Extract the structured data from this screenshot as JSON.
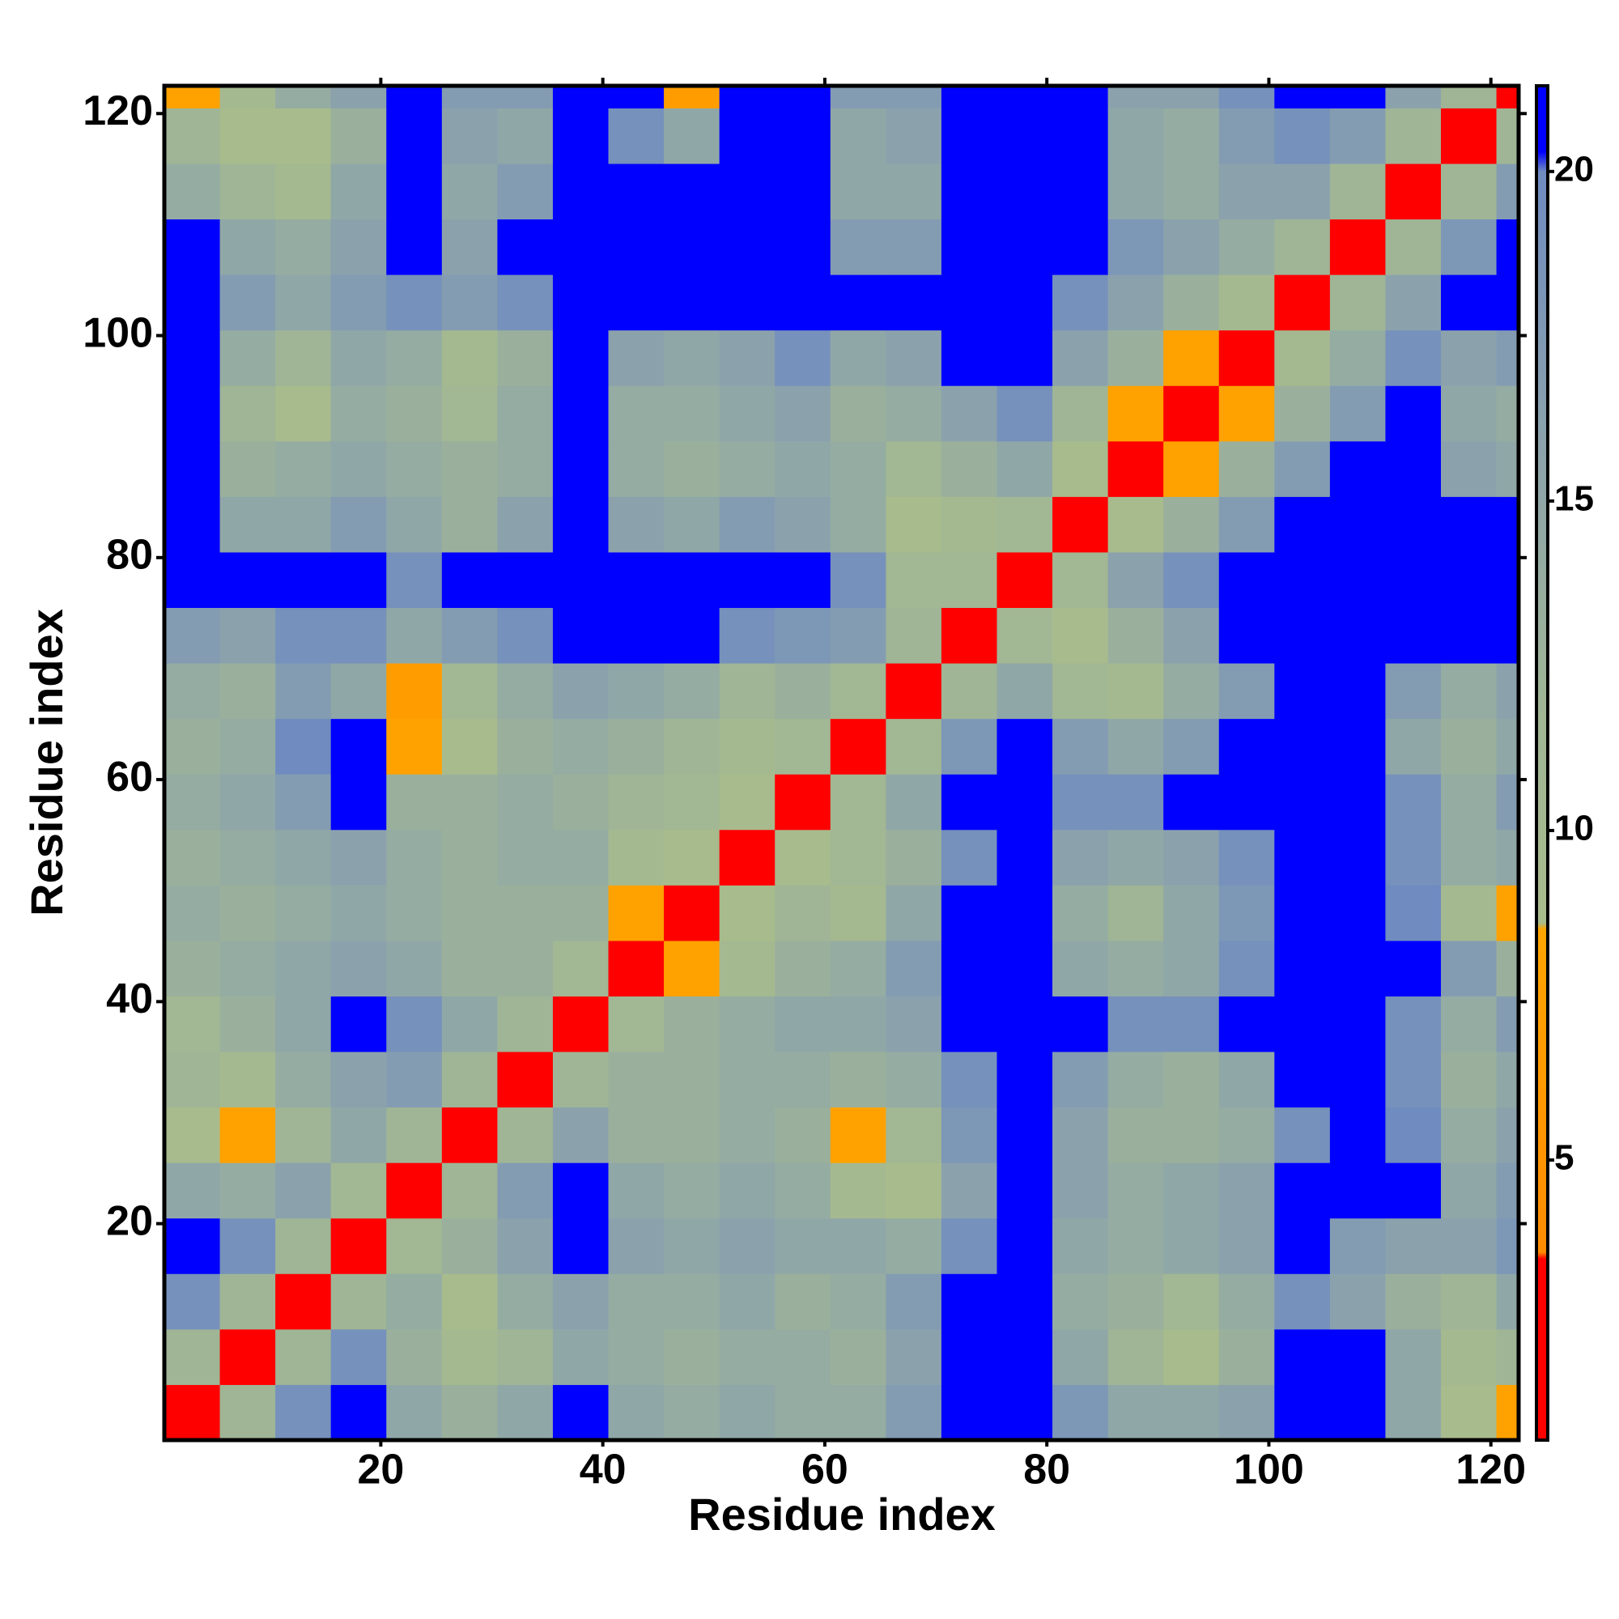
{
  "chart_data": {
    "type": "heatmap",
    "xlabel": "Residue index",
    "ylabel": "Residue index",
    "xbins": [
      0.5,
      5.5,
      10.5,
      15.5,
      20.5,
      25.5,
      30.5,
      35.5,
      40.5,
      45.5,
      50.5,
      55.5,
      60.5,
      65.5,
      70.5,
      75.5,
      80.5,
      85.5,
      90.5,
      95.5,
      100.5,
      105.5,
      110.5,
      115.5,
      120.5,
      122.5
    ],
    "ybins": [
      0.5,
      5.5,
      10.5,
      15.5,
      20.5,
      25.5,
      30.5,
      35.5,
      40.5,
      45.5,
      50.5,
      55.5,
      60.5,
      65.5,
      70.5,
      75.5,
      80.5,
      85.5,
      90.5,
      95.5,
      100.5,
      105.5,
      110.5,
      115.5,
      120.5,
      122.5
    ],
    "values": [
      [
        3,
        12,
        19,
        21,
        15,
        13,
        15,
        21,
        15,
        14,
        15,
        14,
        14,
        17,
        21,
        21,
        18,
        15,
        15,
        16,
        21,
        21,
        15,
        9,
        8
      ],
      [
        12,
        3,
        12,
        19,
        13,
        10,
        12,
        15,
        14,
        13,
        14,
        14,
        13,
        16,
        21,
        21,
        15,
        12,
        9,
        13,
        21,
        21,
        15,
        10,
        12
      ],
      [
        19,
        12,
        3,
        12,
        14,
        9,
        14,
        16,
        14,
        14,
        15,
        13,
        14,
        17,
        21,
        21,
        14,
        13,
        11,
        14,
        19,
        16,
        13,
        12,
        15
      ],
      [
        21,
        19,
        12,
        3,
        11,
        13,
        16,
        21,
        16,
        15,
        16,
        15,
        15,
        14,
        19,
        21,
        15,
        14,
        15,
        16,
        21,
        17,
        16,
        16,
        18
      ],
      [
        15,
        14,
        16,
        11,
        3,
        12,
        17,
        21,
        15,
        14,
        15,
        14,
        10,
        9,
        16,
        21,
        16,
        14,
        15,
        16,
        21,
        21,
        21,
        15,
        17
      ],
      [
        9,
        8,
        12,
        15,
        12,
        3,
        12,
        16,
        13,
        13,
        14,
        13,
        8,
        11,
        18,
        21,
        16,
        13,
        13,
        14,
        19,
        21,
        20,
        14,
        16
      ],
      [
        12,
        10,
        14,
        16,
        17,
        12,
        3,
        12,
        13,
        13,
        14,
        14,
        13,
        14,
        19,
        21,
        17,
        14,
        13,
        15,
        21,
        21,
        19,
        13,
        15
      ],
      [
        11,
        13,
        15,
        21,
        19,
        15,
        12,
        3,
        11,
        13,
        14,
        15,
        15,
        16,
        21,
        21,
        21,
        19,
        19,
        21,
        21,
        21,
        19,
        14,
        17
      ],
      [
        13,
        14,
        15,
        16,
        15,
        13,
        13,
        11,
        3,
        8,
        10,
        13,
        14,
        17,
        21,
        21,
        15,
        14,
        15,
        19,
        21,
        21,
        21,
        17,
        13
      ],
      [
        14,
        13,
        14,
        15,
        14,
        13,
        13,
        13,
        8,
        3,
        9,
        12,
        10,
        15,
        21,
        21,
        14,
        12,
        15,
        18,
        21,
        21,
        20,
        10,
        8
      ],
      [
        13,
        14,
        15,
        16,
        14,
        13,
        14,
        14,
        10,
        9,
        3,
        9,
        11,
        13,
        19,
        21,
        16,
        15,
        16,
        19,
        21,
        21,
        19,
        14,
        15
      ],
      [
        14,
        15,
        17,
        21,
        13,
        13,
        14,
        13,
        12,
        11,
        9,
        3,
        11,
        15,
        21,
        21,
        19,
        19,
        21,
        21,
        21,
        21,
        19,
        14,
        17
      ],
      [
        13,
        14,
        20,
        21,
        8,
        9,
        13,
        14,
        13,
        12,
        10,
        11,
        3,
        11,
        18,
        21,
        17,
        15,
        17,
        21,
        21,
        21,
        15,
        13,
        15
      ],
      [
        14,
        13,
        17,
        15,
        7,
        11,
        14,
        16,
        15,
        14,
        12,
        13,
        11,
        3,
        12,
        15,
        11,
        10,
        14,
        17,
        21,
        21,
        17,
        14,
        16
      ],
      [
        17,
        16,
        19,
        19,
        15,
        17,
        19,
        21,
        21,
        21,
        19,
        18,
        17,
        12,
        3,
        11,
        9,
        13,
        16,
        21,
        21,
        21,
        21,
        21,
        21
      ],
      [
        21,
        21,
        21,
        21,
        19,
        21,
        21,
        21,
        21,
        21,
        21,
        21,
        19,
        11,
        11,
        3,
        11,
        16,
        19,
        21,
        21,
        21,
        21,
        21,
        21
      ],
      [
        21,
        15,
        15,
        17,
        15,
        13,
        16,
        21,
        16,
        15,
        17,
        16,
        14,
        9,
        10,
        11,
        3,
        9,
        13,
        17,
        21,
        21,
        21,
        21,
        21
      ],
      [
        21,
        13,
        14,
        15,
        14,
        13,
        14,
        21,
        14,
        13,
        14,
        15,
        14,
        11,
        13,
        15,
        9,
        3,
        8,
        13,
        17,
        21,
        21,
        16,
        15
      ],
      [
        21,
        12,
        9,
        14,
        13,
        11,
        14,
        21,
        14,
        14,
        15,
        16,
        13,
        14,
        16,
        19,
        12,
        8,
        3,
        8,
        13,
        17,
        21,
        15,
        14
      ],
      [
        21,
        14,
        12,
        15,
        14,
        10,
        13,
        21,
        16,
        15,
        16,
        19,
        15,
        16,
        21,
        21,
        16,
        13,
        8,
        3,
        10,
        14,
        19,
        16,
        17
      ],
      [
        21,
        17,
        15,
        17,
        19,
        17,
        19,
        21,
        21,
        21,
        21,
        21,
        21,
        21,
        21,
        21,
        19,
        16,
        13,
        10,
        3,
        12,
        16,
        21,
        21
      ],
      [
        21,
        15,
        14,
        16,
        21,
        16,
        21,
        21,
        21,
        21,
        21,
        21,
        17,
        17,
        21,
        21,
        21,
        18,
        16,
        14,
        12,
        3,
        12,
        18,
        21
      ],
      [
        14,
        12,
        10,
        15,
        21,
        15,
        17,
        21,
        21,
        21,
        21,
        21,
        15,
        15,
        21,
        21,
        21,
        15,
        14,
        16,
        16,
        12,
        3,
        12,
        17
      ],
      [
        12,
        9,
        9,
        13,
        21,
        16,
        15,
        21,
        19,
        15,
        21,
        21,
        15,
        16,
        21,
        21,
        21,
        15,
        14,
        17,
        19,
        17,
        12,
        3,
        12
      ],
      [
        8,
        10,
        14,
        16,
        21,
        17,
        17,
        21,
        21,
        7,
        21,
        21,
        17,
        17,
        21,
        21,
        21,
        16,
        16,
        19,
        21,
        21,
        16,
        12,
        3
      ]
    ],
    "xlim": [
      0.5,
      122.5
    ],
    "ylim": [
      0.5,
      122.5
    ],
    "xticks": [
      20,
      40,
      60,
      80,
      100,
      120
    ],
    "yticks": [
      20,
      40,
      60,
      80,
      100,
      120
    ],
    "clim": [
      0.75,
      21.3
    ],
    "cticks": [
      5,
      10,
      15,
      20
    ],
    "colormap": [
      {
        "value": 0.75,
        "color": "#ff0000"
      },
      {
        "value": 3.5,
        "color": "#ff0000"
      },
      {
        "value": 3.6,
        "color": "#ff8c00"
      },
      {
        "value": 8.5,
        "color": "#ffa500"
      },
      {
        "value": 8.6,
        "color": "#a9bc8c"
      },
      {
        "value": 12,
        "color": "#9fb596"
      },
      {
        "value": 16,
        "color": "#8ba2ad"
      },
      {
        "value": 20,
        "color": "#6f8bc0"
      },
      {
        "value": 20.3,
        "color": "#0000ff"
      },
      {
        "value": 21.3,
        "color": "#0000ff"
      }
    ]
  }
}
